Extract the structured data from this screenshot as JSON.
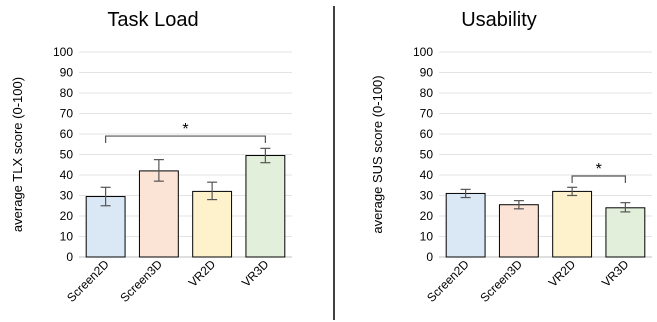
{
  "chart_data": [
    {
      "type": "bar",
      "title": "Task Load",
      "xlabel": "",
      "ylabel": "average TLX score (0-100)",
      "ylim": [
        0,
        100
      ],
      "yticks": [
        0,
        10,
        20,
        30,
        40,
        50,
        60,
        70,
        80,
        90,
        100
      ],
      "grid": true,
      "categories": [
        "Screen2D",
        "Screen3D",
        "VR2D",
        "VR3D"
      ],
      "values": [
        29.5,
        42,
        32,
        49.5
      ],
      "error_low": [
        25,
        37,
        28,
        46
      ],
      "error_high": [
        34,
        47.5,
        36.5,
        53
      ],
      "colors": [
        "#dae8f5",
        "#fbe3d6",
        "#fdf2cc",
        "#e2efda"
      ],
      "significance": [
        {
          "from": "Screen2D",
          "to": "VR3D",
          "y": 59,
          "label": "*"
        }
      ]
    },
    {
      "type": "bar",
      "title": "Usability",
      "xlabel": "",
      "ylabel": "average SUS score (0-100)",
      "ylim": [
        0,
        100
      ],
      "yticks": [
        0,
        10,
        20,
        30,
        40,
        50,
        60,
        70,
        80,
        90,
        100
      ],
      "grid": true,
      "categories": [
        "Screen2D",
        "Screen3D",
        "VR2D",
        "VR3D"
      ],
      "values": [
        31,
        25.5,
        32,
        24
      ],
      "error_low": [
        29,
        23.5,
        30,
        22
      ],
      "error_high": [
        33,
        27.5,
        34,
        26.5
      ],
      "colors": [
        "#dae8f5",
        "#fbe3d6",
        "#fdf2cc",
        "#e2efda"
      ],
      "significance": [
        {
          "from": "VR2D",
          "to": "VR3D",
          "y": 39.5,
          "label": "*"
        }
      ]
    }
  ]
}
